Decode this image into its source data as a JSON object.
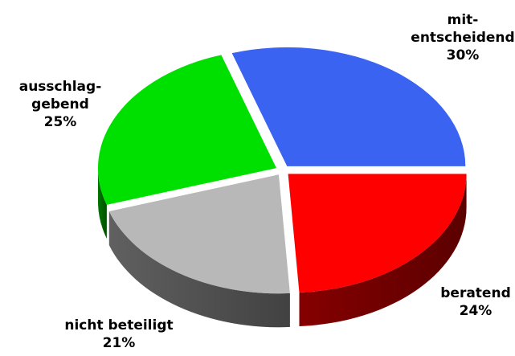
{
  "chart_data": {
    "type": "pie",
    "categories": [
      "mit-entscheidend",
      "beratend",
      "nicht beteiligt",
      "ausschlag-gebend"
    ],
    "values": [
      30,
      24,
      21,
      25
    ],
    "value_labels": [
      "30%",
      "24%",
      "21%",
      "25%"
    ],
    "colors": [
      "#3a63f2",
      "#ff0000",
      "#b8b8b8",
      "#00e000"
    ]
  }
}
